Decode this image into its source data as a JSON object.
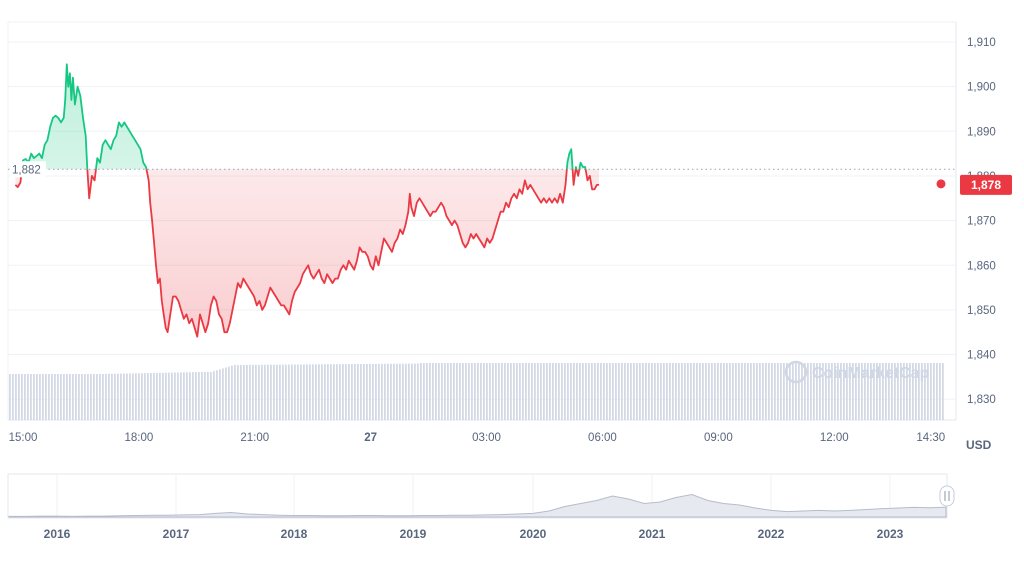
{
  "chart_data": {
    "type": "line",
    "title": "",
    "xlabel": "",
    "ylabel": "",
    "unit_label": "USD",
    "ylim": [
      1828,
      1914
    ],
    "y_ticks": [
      "1,910",
      "1,900",
      "1,890",
      "1,880",
      "1,870",
      "1,860",
      "1,850",
      "1,840",
      "1,830"
    ],
    "y_tick_values": [
      1910,
      1900,
      1890,
      1880,
      1870,
      1860,
      1850,
      1840,
      1830
    ],
    "x_ticks": [
      {
        "label": "15:00",
        "t": 15.0
      },
      {
        "label": "18:00",
        "t": 18.0
      },
      {
        "label": "21:00",
        "t": 21.0
      },
      {
        "label": "27",
        "t": 24.0,
        "bold": true
      },
      {
        "label": "03:00",
        "t": 27.0
      },
      {
        "label": "06:00",
        "t": 30.0
      },
      {
        "label": "09:00",
        "t": 33.0
      },
      {
        "label": "12:00",
        "t": 36.0
      },
      {
        "label": "14:30",
        "t": 38.5
      }
    ],
    "x_range_hours": [
      14.78,
      39.08
    ],
    "reference": {
      "value": 1881.5,
      "label": "1,882"
    },
    "current": {
      "value": 1878,
      "label": "1,878"
    },
    "colors": {
      "up": "#16c784",
      "down": "#ea3943",
      "volume": "#d4d9e6",
      "grid": "#eff2f5"
    },
    "grid": true,
    "watermark": "CoinMarketCap",
    "series": [
      {
        "values_desc": "price",
        "points": [
          [
            15.01,
            1878
          ],
          [
            15.07,
            1877.5
          ],
          [
            15.14,
            1878.5
          ],
          [
            15.21,
            1883.5
          ],
          [
            15.28,
            1883.8
          ],
          [
            15.35,
            1883
          ],
          [
            15.42,
            1885
          ],
          [
            15.49,
            1884
          ],
          [
            15.56,
            1884.5
          ],
          [
            15.63,
            1885
          ],
          [
            15.7,
            1884
          ],
          [
            15.77,
            1887
          ],
          [
            15.84,
            1888
          ],
          [
            15.91,
            1891
          ],
          [
            15.98,
            1893
          ],
          [
            16.05,
            1893.5
          ],
          [
            16.12,
            1893
          ],
          [
            16.19,
            1892
          ],
          [
            16.26,
            1893
          ],
          [
            16.3,
            1897
          ],
          [
            16.34,
            1905
          ],
          [
            16.38,
            1900
          ],
          [
            16.42,
            1903
          ],
          [
            16.46,
            1897
          ],
          [
            16.5,
            1902
          ],
          [
            16.55,
            1896
          ],
          [
            16.62,
            1900
          ],
          [
            16.69,
            1898
          ],
          [
            16.76,
            1893
          ],
          [
            16.83,
            1889
          ],
          [
            16.87,
            1882
          ],
          [
            16.92,
            1875
          ],
          [
            16.99,
            1880
          ],
          [
            17.06,
            1879
          ],
          [
            17.13,
            1884
          ],
          [
            17.2,
            1883
          ],
          [
            17.27,
            1887
          ],
          [
            17.34,
            1888
          ],
          [
            17.41,
            1887
          ],
          [
            17.48,
            1886
          ],
          [
            17.55,
            1888
          ],
          [
            17.62,
            1889
          ],
          [
            17.69,
            1892
          ],
          [
            17.76,
            1891
          ],
          [
            17.83,
            1892
          ],
          [
            17.9,
            1891
          ],
          [
            17.97,
            1890
          ],
          [
            18.04,
            1889
          ],
          [
            18.11,
            1888
          ],
          [
            18.18,
            1887
          ],
          [
            18.25,
            1886
          ],
          [
            18.32,
            1883
          ],
          [
            18.39,
            1882
          ],
          [
            18.46,
            1879
          ],
          [
            18.5,
            1874
          ],
          [
            18.55,
            1870
          ],
          [
            18.6,
            1865
          ],
          [
            18.65,
            1860
          ],
          [
            18.7,
            1856
          ],
          [
            18.75,
            1857
          ],
          [
            18.8,
            1852
          ],
          [
            18.85,
            1849
          ],
          [
            18.9,
            1846
          ],
          [
            18.95,
            1845
          ],
          [
            19.02,
            1849
          ],
          [
            19.09,
            1853
          ],
          [
            19.16,
            1853
          ],
          [
            19.23,
            1852
          ],
          [
            19.3,
            1850
          ],
          [
            19.37,
            1848
          ],
          [
            19.44,
            1849
          ],
          [
            19.51,
            1847
          ],
          [
            19.58,
            1848
          ],
          [
            19.65,
            1846
          ],
          [
            19.72,
            1844
          ],
          [
            19.79,
            1849
          ],
          [
            19.86,
            1847
          ],
          [
            19.93,
            1845
          ],
          [
            20.0,
            1847
          ],
          [
            20.07,
            1851
          ],
          [
            20.14,
            1853
          ],
          [
            20.21,
            1852
          ],
          [
            20.28,
            1849
          ],
          [
            20.35,
            1848
          ],
          [
            20.42,
            1845
          ],
          [
            20.49,
            1845
          ],
          [
            20.56,
            1847
          ],
          [
            20.63,
            1850
          ],
          [
            20.7,
            1853
          ],
          [
            20.77,
            1856
          ],
          [
            20.84,
            1855
          ],
          [
            20.91,
            1857
          ],
          [
            20.98,
            1856
          ],
          [
            21.05,
            1855
          ],
          [
            21.12,
            1854
          ],
          [
            21.19,
            1853
          ],
          [
            21.26,
            1851
          ],
          [
            21.33,
            1852
          ],
          [
            21.4,
            1850
          ],
          [
            21.47,
            1851
          ],
          [
            21.54,
            1853
          ],
          [
            21.61,
            1855
          ],
          [
            21.68,
            1854
          ],
          [
            21.75,
            1853
          ],
          [
            21.82,
            1852
          ],
          [
            21.89,
            1851
          ],
          [
            21.96,
            1851
          ],
          [
            22.03,
            1850
          ],
          [
            22.1,
            1849
          ],
          [
            22.17,
            1852
          ],
          [
            22.24,
            1854
          ],
          [
            22.31,
            1855
          ],
          [
            22.38,
            1856
          ],
          [
            22.45,
            1858
          ],
          [
            22.52,
            1859
          ],
          [
            22.59,
            1860
          ],
          [
            22.66,
            1858
          ],
          [
            22.73,
            1857
          ],
          [
            22.8,
            1858
          ],
          [
            22.87,
            1859
          ],
          [
            22.94,
            1857
          ],
          [
            23.01,
            1856
          ],
          [
            23.08,
            1858
          ],
          [
            23.15,
            1857
          ],
          [
            23.22,
            1856
          ],
          [
            23.29,
            1857
          ],
          [
            23.36,
            1857
          ],
          [
            23.43,
            1859
          ],
          [
            23.5,
            1860
          ],
          [
            23.57,
            1859
          ],
          [
            23.64,
            1861
          ],
          [
            23.71,
            1860
          ],
          [
            23.78,
            1859
          ],
          [
            23.85,
            1861
          ],
          [
            23.92,
            1864
          ],
          [
            23.99,
            1863
          ],
          [
            24.06,
            1863
          ],
          [
            24.13,
            1862
          ],
          [
            24.2,
            1860
          ],
          [
            24.27,
            1859
          ],
          [
            24.34,
            1862
          ],
          [
            24.41,
            1860
          ],
          [
            24.48,
            1863
          ],
          [
            24.55,
            1866
          ],
          [
            24.62,
            1865
          ],
          [
            24.69,
            1864
          ],
          [
            24.76,
            1863
          ],
          [
            24.83,
            1865
          ],
          [
            24.9,
            1866
          ],
          [
            24.97,
            1868
          ],
          [
            25.04,
            1867
          ],
          [
            25.11,
            1869
          ],
          [
            25.18,
            1872
          ],
          [
            25.22,
            1876
          ],
          [
            25.26,
            1873
          ],
          [
            25.33,
            1871
          ],
          [
            25.4,
            1874
          ],
          [
            25.47,
            1875
          ],
          [
            25.54,
            1874
          ],
          [
            25.61,
            1873
          ],
          [
            25.68,
            1872
          ],
          [
            25.75,
            1871
          ],
          [
            25.82,
            1872
          ],
          [
            25.89,
            1872
          ],
          [
            25.96,
            1873
          ],
          [
            26.03,
            1874
          ],
          [
            26.1,
            1873
          ],
          [
            26.17,
            1871
          ],
          [
            26.24,
            1870
          ],
          [
            26.31,
            1869
          ],
          [
            26.38,
            1870
          ],
          [
            26.45,
            1869
          ],
          [
            26.52,
            1867
          ],
          [
            26.59,
            1865
          ],
          [
            26.66,
            1864
          ],
          [
            26.73,
            1865
          ],
          [
            26.8,
            1867
          ],
          [
            26.87,
            1866
          ],
          [
            26.94,
            1867
          ],
          [
            27.01,
            1866
          ],
          [
            27.08,
            1865
          ],
          [
            27.15,
            1864
          ],
          [
            27.22,
            1866
          ],
          [
            27.29,
            1865
          ],
          [
            27.36,
            1866
          ],
          [
            27.43,
            1868
          ],
          [
            27.5,
            1870
          ],
          [
            27.57,
            1872
          ],
          [
            27.64,
            1872
          ],
          [
            27.71,
            1874
          ],
          [
            27.78,
            1873
          ],
          [
            27.85,
            1875
          ],
          [
            27.92,
            1876
          ],
          [
            27.99,
            1875
          ],
          [
            28.06,
            1877
          ],
          [
            28.13,
            1876
          ],
          [
            28.2,
            1879
          ],
          [
            28.27,
            1877
          ],
          [
            28.34,
            1878
          ],
          [
            28.41,
            1877
          ],
          [
            28.48,
            1876
          ],
          [
            28.55,
            1875
          ],
          [
            28.62,
            1874
          ],
          [
            28.69,
            1875
          ],
          [
            28.76,
            1874
          ],
          [
            28.83,
            1875
          ],
          [
            28.9,
            1874
          ],
          [
            28.97,
            1875
          ],
          [
            29.04,
            1874
          ],
          [
            29.11,
            1876
          ],
          [
            29.18,
            1874
          ],
          [
            29.25,
            1878
          ],
          [
            29.3,
            1883
          ],
          [
            29.35,
            1885
          ],
          [
            29.4,
            1886
          ],
          [
            29.46,
            1878
          ],
          [
            29.52,
            1882
          ],
          [
            29.58,
            1880
          ],
          [
            29.64,
            1883
          ],
          [
            29.7,
            1882
          ],
          [
            29.76,
            1882
          ],
          [
            29.82,
            1879
          ],
          [
            29.88,
            1880
          ],
          [
            29.94,
            1877
          ],
          [
            30.0,
            1877
          ],
          [
            30.06,
            1878
          ],
          [
            30.12,
            1878
          ]
        ]
      }
    ],
    "navigator": {
      "year_labels": [
        "2016",
        "2017",
        "2018",
        "2019",
        "2020",
        "2021",
        "2022",
        "2023"
      ],
      "profile": [
        0.02,
        0.02,
        0.03,
        0.03,
        0.02,
        0.03,
        0.03,
        0.04,
        0.05,
        0.06,
        0.06,
        0.07,
        0.08,
        0.12,
        0.15,
        0.1,
        0.08,
        0.06,
        0.05,
        0.05,
        0.04,
        0.04,
        0.05,
        0.05,
        0.04,
        0.04,
        0.05,
        0.05,
        0.06,
        0.06,
        0.07,
        0.08,
        0.1,
        0.12,
        0.2,
        0.35,
        0.45,
        0.55,
        0.7,
        0.6,
        0.45,
        0.5,
        0.65,
        0.75,
        0.55,
        0.45,
        0.4,
        0.3,
        0.22,
        0.18,
        0.2,
        0.22,
        0.2,
        0.22,
        0.25,
        0.28,
        0.3,
        0.32,
        0.31,
        0.33
      ]
    }
  }
}
